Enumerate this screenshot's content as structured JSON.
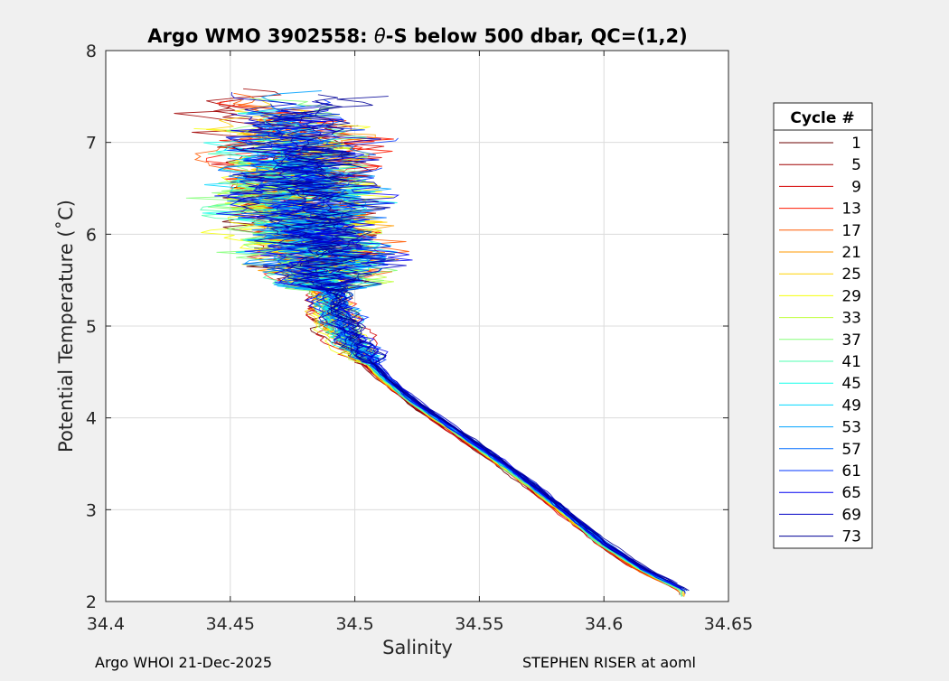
{
  "chart_data": {
    "type": "line",
    "title_prefix": "Argo WMO 3902558: ",
    "title_symbol": "θ",
    "title_suffix": "-S below 500 dbar,  QC=(1,2)",
    "xlabel": "Salinity",
    "ylabel": "Potential Temperature (˚C)",
    "xlim": [
      34.4,
      34.65
    ],
    "ylim": [
      2,
      8
    ],
    "xticks": [
      34.4,
      34.45,
      34.5,
      34.55,
      34.6,
      34.65
    ],
    "xtick_labels": [
      "34.4",
      "34.45",
      "34.5",
      "34.55",
      "34.6",
      "34.65"
    ],
    "yticks": [
      2,
      3,
      4,
      5,
      6,
      7,
      8
    ],
    "ytick_labels": [
      "2",
      "3",
      "4",
      "5",
      "6",
      "7",
      "8"
    ],
    "grid": true,
    "legend_title": "Cycle #",
    "legend_placement": "outside-right",
    "colormap": "jet",
    "series": [
      {
        "name": "1",
        "color": "#6b0000"
      },
      {
        "name": "5",
        "color": "#a00000"
      },
      {
        "name": "9",
        "color": "#d40000"
      },
      {
        "name": "13",
        "color": "#ff1a00"
      },
      {
        "name": "17",
        "color": "#ff5a00"
      },
      {
        "name": "21",
        "color": "#ff9a00"
      },
      {
        "name": "25",
        "color": "#ffd200"
      },
      {
        "name": "29",
        "color": "#f5ff0a"
      },
      {
        "name": "33",
        "color": "#c0ff3f"
      },
      {
        "name": "37",
        "color": "#85ff7a"
      },
      {
        "name": "41",
        "color": "#4fffb0"
      },
      {
        "name": "45",
        "color": "#15ffea"
      },
      {
        "name": "49",
        "color": "#00d8ff"
      },
      {
        "name": "53",
        "color": "#00a2ff"
      },
      {
        "name": "57",
        "color": "#006cff"
      },
      {
        "name": "61",
        "color": "#0036ff"
      },
      {
        "name": "65",
        "color": "#0000f2"
      },
      {
        "name": "69",
        "color": "#0000c4"
      },
      {
        "name": "73",
        "color": "#000096"
      }
    ],
    "profile_template": {
      "salinity": [
        34.632,
        34.615,
        34.6,
        34.585,
        34.57,
        34.555,
        34.54,
        34.525,
        34.512,
        34.503,
        34.496,
        34.492,
        34.489,
        34.485,
        34.482,
        34.478,
        34.476,
        34.475
      ],
      "temperature": [
        2.12,
        2.35,
        2.62,
        2.95,
        3.28,
        3.58,
        3.86,
        4.14,
        4.42,
        4.68,
        4.92,
        5.15,
        5.4,
        5.7,
        6.0,
        6.35,
        6.7,
        7.2
      ]
    }
  },
  "footer": {
    "left": "Argo WHOI 21-Dec-2025",
    "right": "STEPHEN RISER at aoml"
  }
}
